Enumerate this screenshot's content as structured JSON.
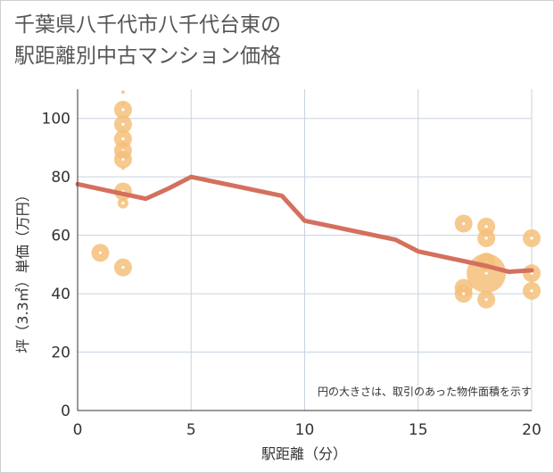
{
  "title_lines": [
    "千葉県八千代市八千代台東の",
    "駅距離別中古マンション価格"
  ],
  "note": "円の大きさは、取引のあった物件面積を示す",
  "colors": {
    "bubble": "#f4c07a",
    "bubble_center": "#ffffff",
    "line": "#d4705e",
    "grid": "#c8d3df",
    "axis": "#333333"
  },
  "chart_data": {
    "type": "scatter",
    "xlabel": "駅距離（分）",
    "ylabel": "坪（3.3㎡）単価（万円）",
    "xlim": [
      0,
      20
    ],
    "ylim": [
      0,
      110
    ],
    "x_ticks": [
      "0",
      "5",
      "10",
      "15",
      "20"
    ],
    "y_ticks": [
      "0",
      "20",
      "40",
      "60",
      "80",
      "100"
    ],
    "grid": true,
    "bubbles": [
      {
        "x": 1,
        "y": 54,
        "size": 3
      },
      {
        "x": 2,
        "y": 109,
        "size": 1
      },
      {
        "x": 2,
        "y": 105,
        "size": 1
      },
      {
        "x": 2,
        "y": 103,
        "size": 3
      },
      {
        "x": 2,
        "y": 98,
        "size": 3
      },
      {
        "x": 2,
        "y": 93,
        "size": 3
      },
      {
        "x": 2,
        "y": 89,
        "size": 3
      },
      {
        "x": 2,
        "y": 86,
        "size": 3
      },
      {
        "x": 2,
        "y": 83,
        "size": 1
      },
      {
        "x": 2,
        "y": 75,
        "size": 3
      },
      {
        "x": 2,
        "y": 71,
        "size": 2
      },
      {
        "x": 2,
        "y": 49,
        "size": 3
      },
      {
        "x": 17,
        "y": 64,
        "size": 3
      },
      {
        "x": 17,
        "y": 42,
        "size": 3
      },
      {
        "x": 17,
        "y": 40,
        "size": 3
      },
      {
        "x": 18,
        "y": 63,
        "size": 3
      },
      {
        "x": 18,
        "y": 59,
        "size": 3
      },
      {
        "x": 18,
        "y": 51,
        "size": 3
      },
      {
        "x": 18,
        "y": 47,
        "size": 6
      },
      {
        "x": 18,
        "y": 38,
        "size": 3
      },
      {
        "x": 20,
        "y": 59,
        "size": 3
      },
      {
        "x": 20,
        "y": 47,
        "size": 3
      },
      {
        "x": 20,
        "y": 41,
        "size": 3
      }
    ],
    "trend_line": {
      "x": [
        0,
        3,
        4,
        5,
        9,
        10,
        14,
        15,
        18,
        19,
        20
      ],
      "y": [
        77.5,
        72.5,
        76,
        80,
        73.5,
        65,
        58.5,
        54.5,
        49.5,
        47.5,
        48
      ]
    }
  }
}
